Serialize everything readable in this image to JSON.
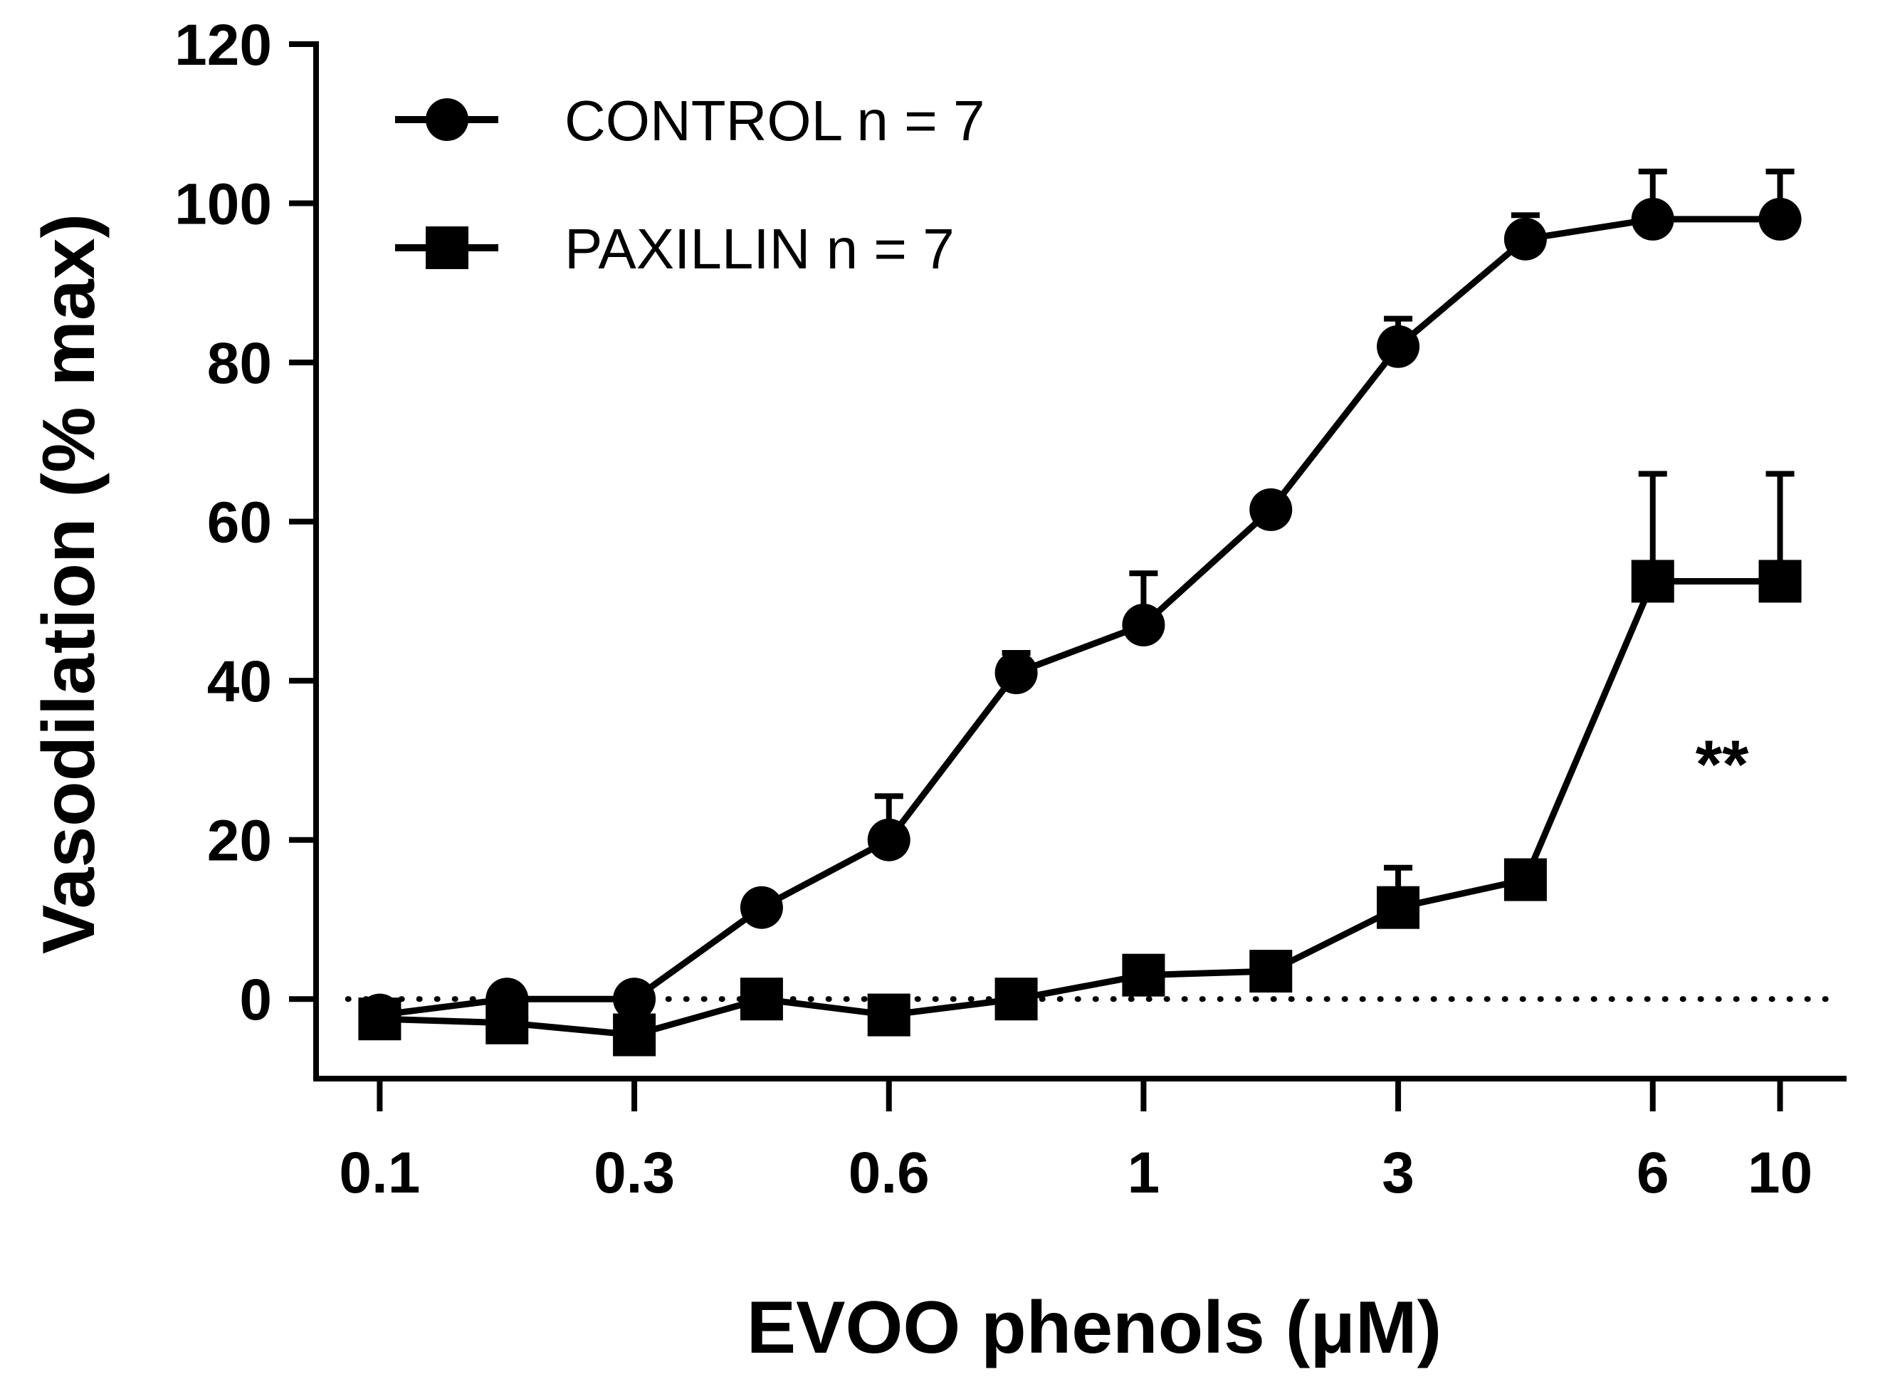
{
  "chart_data": {
    "type": "line",
    "title": "",
    "xlabel": "EVOO phenols (μM)",
    "ylabel": "Vasodilation (% max)",
    "x_tick_labels": [
      "0.1",
      "0.3",
      "0.6",
      "1",
      "3",
      "6",
      "10"
    ],
    "x_tick_positions": [
      1,
      3,
      5,
      7,
      9,
      11,
      12
    ],
    "x_points": [
      1,
      2,
      3,
      4,
      5,
      6,
      7,
      8,
      9,
      10,
      11,
      12
    ],
    "xlim": [
      0.5,
      12.5
    ],
    "ylim": [
      -10,
      120
    ],
    "yticks": [
      0,
      20,
      40,
      60,
      80,
      100,
      120
    ],
    "reference_line_y": 0,
    "legend_position": "top-left",
    "series": [
      {
        "name": "CONTROL n = 7",
        "marker": "circle",
        "values": [
          -2,
          0,
          0,
          11.5,
          20,
          41,
          47,
          61.5,
          82,
          95.5,
          98,
          98
        ],
        "errors": [
          0,
          0,
          0,
          0,
          5.5,
          2.5,
          6.5,
          0,
          3.5,
          3,
          6,
          6
        ]
      },
      {
        "name": "PAXILLIN n = 7",
        "marker": "square",
        "values": [
          -2.5,
          -3,
          -4.5,
          0,
          -2,
          0,
          3,
          3.5,
          11.5,
          15,
          52.5,
          52.5
        ],
        "errors": [
          0,
          0,
          0,
          0,
          0,
          0,
          0,
          0,
          5,
          0,
          13.5,
          13.5
        ]
      }
    ],
    "annotations": [
      {
        "text": "**",
        "x": 11.5,
        "y": 31
      }
    ]
  }
}
